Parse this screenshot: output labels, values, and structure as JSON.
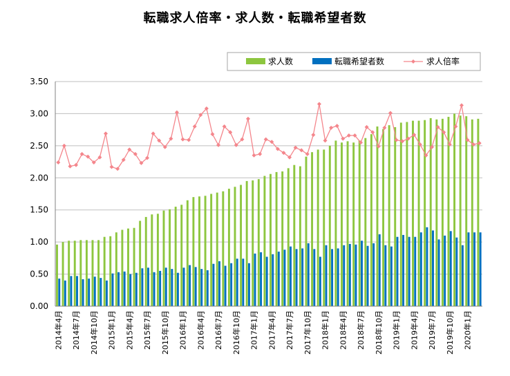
{
  "chart_data": {
    "type": "bar",
    "title": "転職求人倍率・求人数・転職希望者数",
    "ylim": [
      0,
      3.5
    ],
    "yticks": [
      "0.00",
      "0.50",
      "1.00",
      "1.50",
      "2.00",
      "2.50",
      "3.00",
      "3.50"
    ],
    "grid": true,
    "legend_position": "top-right",
    "x": [
      "2014年4月",
      "2014年5月",
      "2014年6月",
      "2014年7月",
      "2014年8月",
      "2014年9月",
      "2014年10月",
      "2014年11月",
      "2014年12月",
      "2015年1月",
      "2015年2月",
      "2015年3月",
      "2015年4月",
      "2015年5月",
      "2015年6月",
      "2015年7月",
      "2015年8月",
      "2015年9月",
      "2015年10月",
      "2015年11月",
      "2015年12月",
      "2016年1月",
      "2016年2月",
      "2016年3月",
      "2016年4月",
      "2016年5月",
      "2016年6月",
      "2016年7月",
      "2016年8月",
      "2016年9月",
      "2016年10月",
      "2016年11月",
      "2016年12月",
      "2017年1月",
      "2017年2月",
      "2017年3月",
      "2017年4月",
      "2017年5月",
      "2017年6月",
      "2017年7月",
      "2017年8月",
      "2017年9月",
      "2017年10月",
      "2017年11月",
      "2017年12月",
      "2018年1月",
      "2018年2月",
      "2018年3月",
      "2018年4月",
      "2018年5月",
      "2018年6月",
      "2018年7月",
      "2018年8月",
      "2018年9月",
      "2018年10月",
      "2018年11月",
      "2018年12月",
      "2019年1月",
      "2019年2月",
      "2019年3月",
      "2019年4月",
      "2019年5月",
      "2019年6月",
      "2019年7月",
      "2019年8月",
      "2019年9月",
      "2019年10月",
      "2019年11月",
      "2019年12月",
      "2020年1月",
      "2020年2月",
      "2020年3月"
    ],
    "xtick_labels": [
      "2014年4月",
      "2014年7月",
      "2014年10月",
      "2015年1月",
      "2015年4月",
      "2015年7月",
      "2015年10月",
      "2016年1月",
      "2016年4月",
      "2016年7月",
      "2016年10月",
      "2017年1月",
      "2017年4月",
      "2017年7月",
      "2017年10月",
      "2018年1月",
      "2018年4月",
      "2018年7月",
      "2018年10月",
      "2019年1月",
      "2019年4月",
      "2019年7月",
      "2019年10月",
      "2020年1月"
    ],
    "series": [
      {
        "name": "求人数",
        "type": "bar",
        "color": "#8dc63f",
        "values": [
          0.96,
          1.0,
          1.02,
          1.02,
          1.03,
          1.03,
          1.03,
          1.03,
          1.08,
          1.09,
          1.15,
          1.19,
          1.21,
          1.22,
          1.33,
          1.39,
          1.43,
          1.44,
          1.49,
          1.51,
          1.55,
          1.58,
          1.65,
          1.7,
          1.71,
          1.72,
          1.75,
          1.77,
          1.79,
          1.83,
          1.86,
          1.89,
          1.95,
          1.96,
          1.98,
          2.03,
          2.06,
          2.09,
          2.1,
          2.15,
          2.2,
          2.18,
          2.33,
          2.4,
          2.44,
          2.44,
          2.5,
          2.58,
          2.55,
          2.57,
          2.55,
          2.58,
          2.62,
          2.68,
          2.8,
          2.76,
          2.82,
          2.79,
          2.86,
          2.87,
          2.89,
          2.89,
          2.9,
          2.93,
          2.91,
          2.92,
          2.95,
          3.0,
          2.97,
          2.96,
          2.91,
          2.92
        ]
      },
      {
        "name": "転職希望者数",
        "type": "bar",
        "color": "#0070c0",
        "values": [
          0.43,
          0.4,
          0.47,
          0.47,
          0.42,
          0.43,
          0.46,
          0.44,
          0.4,
          0.51,
          0.53,
          0.54,
          0.5,
          0.52,
          0.59,
          0.6,
          0.53,
          0.55,
          0.6,
          0.58,
          0.52,
          0.6,
          0.64,
          0.61,
          0.58,
          0.56,
          0.66,
          0.7,
          0.63,
          0.67,
          0.74,
          0.74,
          0.67,
          0.82,
          0.84,
          0.77,
          0.81,
          0.85,
          0.88,
          0.93,
          0.89,
          0.9,
          0.98,
          0.89,
          0.77,
          0.95,
          0.89,
          0.9,
          0.95,
          0.97,
          0.96,
          1.02,
          0.94,
          0.98,
          1.12,
          0.95,
          0.93,
          1.08,
          1.11,
          1.08,
          1.08,
          1.15,
          1.23,
          1.18,
          1.04,
          1.1,
          1.17,
          1.07,
          0.95,
          1.15,
          1.15,
          1.15
        ]
      },
      {
        "name": "求人倍率",
        "type": "line",
        "color": "#f4868c",
        "values": [
          2.24,
          2.5,
          2.18,
          2.2,
          2.37,
          2.33,
          2.24,
          2.32,
          2.69,
          2.17,
          2.14,
          2.28,
          2.44,
          2.37,
          2.23,
          2.31,
          2.69,
          2.58,
          2.48,
          2.61,
          3.02,
          2.6,
          2.59,
          2.8,
          2.98,
          3.08,
          2.68,
          2.51,
          2.8,
          2.71,
          2.51,
          2.6,
          2.92,
          2.35,
          2.37,
          2.6,
          2.56,
          2.45,
          2.39,
          2.32,
          2.47,
          2.43,
          2.37,
          2.67,
          3.15,
          2.58,
          2.78,
          2.81,
          2.61,
          2.66,
          2.66,
          2.55,
          2.79,
          2.71,
          2.49,
          2.78,
          3.01,
          2.59,
          2.57,
          2.61,
          2.67,
          2.52,
          2.35,
          2.48,
          2.79,
          2.71,
          2.52,
          2.8,
          3.13,
          2.59,
          2.52,
          2.54
        ]
      }
    ]
  }
}
